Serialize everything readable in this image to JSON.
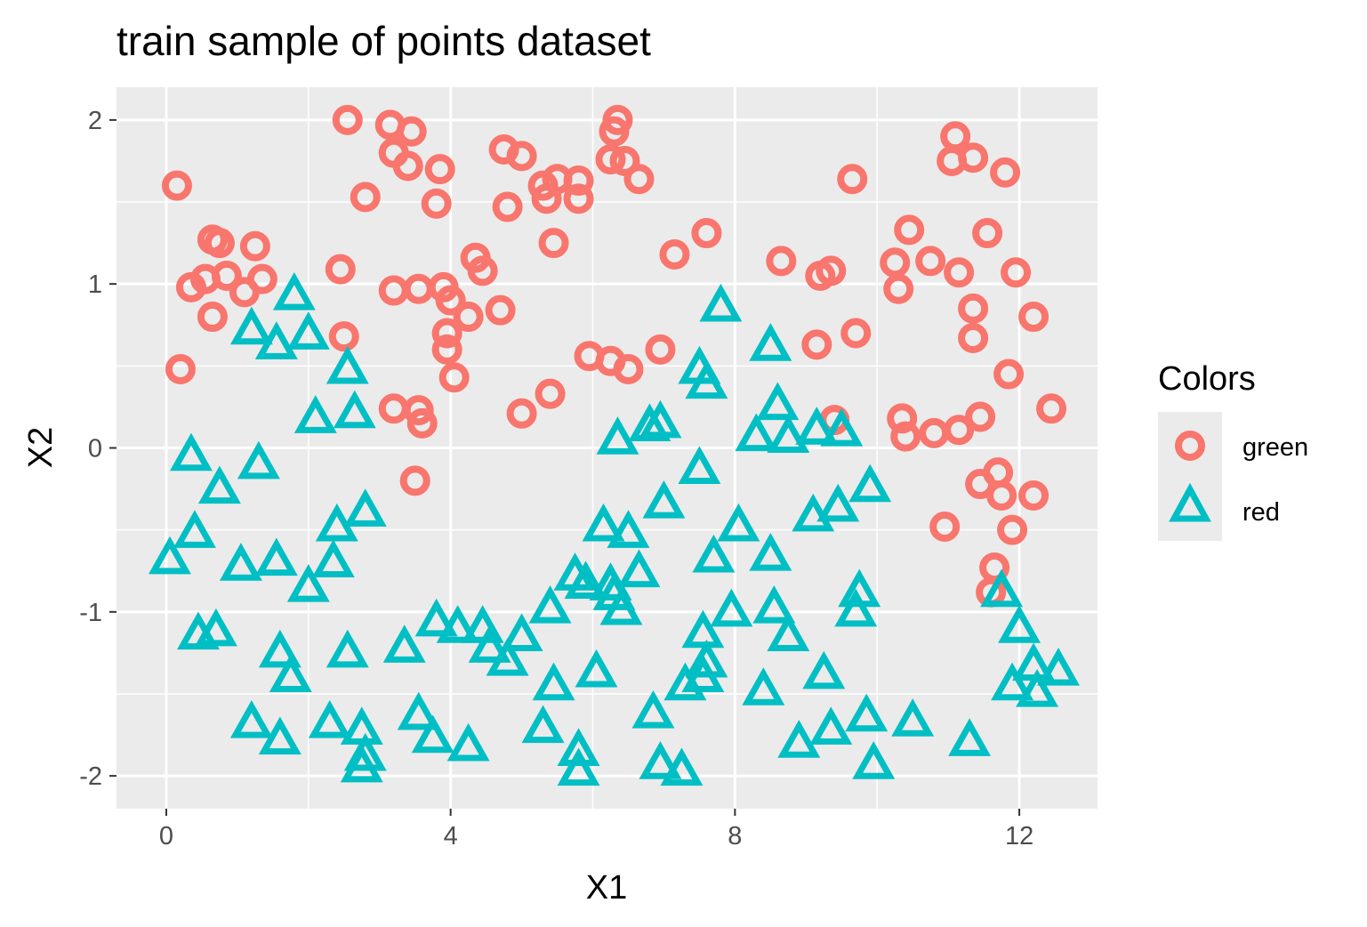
{
  "chart_data": {
    "type": "scatter",
    "title": "train sample of points dataset",
    "xlabel": "X1",
    "ylabel": "X2",
    "xlim": [
      -0.7,
      13.1
    ],
    "ylim": [
      -2.2,
      2.2
    ],
    "x_ticks": [
      0,
      4,
      8,
      12
    ],
    "x_tick_labels": [
      "0",
      "4",
      "8",
      "12"
    ],
    "y_ticks": [
      -2,
      -1,
      0,
      1,
      2
    ],
    "y_tick_labels": [
      "-2",
      "-1",
      "0",
      "1",
      "2"
    ],
    "grid": true,
    "legend": {
      "title": "Colors",
      "placement": "right"
    },
    "colors": {
      "green": "#F8766D",
      "red": "#00BFC4",
      "panel": "#EBEBEB",
      "grid": "#FFFFFF"
    },
    "series": [
      {
        "name": "green",
        "shape": "circle",
        "color": "#F8766D",
        "points": [
          [
            0.15,
            1.6
          ],
          [
            0.2,
            0.48
          ],
          [
            0.35,
            0.98
          ],
          [
            0.55,
            1.03
          ],
          [
            0.65,
            1.27
          ],
          [
            0.75,
            1.25
          ],
          [
            0.65,
            0.8
          ],
          [
            0.85,
            1.05
          ],
          [
            1.1,
            0.95
          ],
          [
            1.25,
            1.23
          ],
          [
            1.35,
            1.03
          ],
          [
            2.45,
            1.09
          ],
          [
            2.5,
            0.68
          ],
          [
            2.55,
            2.0
          ],
          [
            2.8,
            1.53
          ],
          [
            3.15,
            1.97
          ],
          [
            3.2,
            1.8
          ],
          [
            3.4,
            1.72
          ],
          [
            3.45,
            1.93
          ],
          [
            3.2,
            0.96
          ],
          [
            3.55,
            0.97
          ],
          [
            3.2,
            0.24
          ],
          [
            3.55,
            0.23
          ],
          [
            3.6,
            0.15
          ],
          [
            3.5,
            -0.2
          ],
          [
            3.8,
            1.49
          ],
          [
            3.85,
            1.7
          ],
          [
            3.9,
            0.98
          ],
          [
            4.0,
            0.9
          ],
          [
            3.95,
            0.7
          ],
          [
            3.95,
            0.6
          ],
          [
            4.05,
            0.43
          ],
          [
            4.25,
            0.8
          ],
          [
            4.35,
            1.16
          ],
          [
            4.45,
            1.08
          ],
          [
            4.7,
            0.84
          ],
          [
            4.75,
            1.82
          ],
          [
            4.8,
            1.47
          ],
          [
            5.0,
            1.78
          ],
          [
            5.0,
            0.21
          ],
          [
            5.3,
            1.6
          ],
          [
            5.35,
            1.52
          ],
          [
            5.4,
            0.33
          ],
          [
            5.5,
            1.64
          ],
          [
            5.45,
            1.25
          ],
          [
            5.8,
            1.63
          ],
          [
            5.8,
            1.52
          ],
          [
            5.95,
            0.56
          ],
          [
            6.25,
            0.53
          ],
          [
            6.25,
            1.76
          ],
          [
            6.3,
            1.93
          ],
          [
            6.35,
            2.0
          ],
          [
            6.45,
            1.75
          ],
          [
            6.5,
            0.48
          ],
          [
            6.65,
            1.64
          ],
          [
            6.95,
            0.6
          ],
          [
            7.15,
            1.18
          ],
          [
            7.6,
            1.31
          ],
          [
            8.65,
            1.14
          ],
          [
            9.15,
            0.63
          ],
          [
            9.2,
            1.05
          ],
          [
            9.35,
            1.08
          ],
          [
            9.4,
            0.17
          ],
          [
            9.65,
            1.64
          ],
          [
            9.7,
            0.7
          ],
          [
            10.25,
            1.13
          ],
          [
            10.3,
            0.97
          ],
          [
            10.35,
            0.18
          ],
          [
            10.4,
            0.07
          ],
          [
            10.45,
            1.33
          ],
          [
            10.75,
            1.14
          ],
          [
            10.8,
            0.09
          ],
          [
            10.95,
            -0.48
          ],
          [
            11.05,
            1.75
          ],
          [
            11.1,
            1.9
          ],
          [
            11.15,
            1.07
          ],
          [
            11.15,
            0.11
          ],
          [
            11.35,
            1.77
          ],
          [
            11.35,
            0.85
          ],
          [
            11.35,
            0.67
          ],
          [
            11.45,
            0.19
          ],
          [
            11.45,
            -0.22
          ],
          [
            11.55,
            1.31
          ],
          [
            11.6,
            -0.88
          ],
          [
            11.65,
            -0.73
          ],
          [
            11.7,
            -0.15
          ],
          [
            11.75,
            -0.29
          ],
          [
            11.8,
            1.68
          ],
          [
            11.85,
            0.45
          ],
          [
            11.9,
            -0.5
          ],
          [
            11.95,
            1.07
          ],
          [
            12.2,
            0.8
          ],
          [
            12.2,
            -0.29
          ],
          [
            12.45,
            0.24
          ]
        ]
      },
      {
        "name": "red",
        "shape": "triangle",
        "color": "#00BFC4",
        "points": [
          [
            0.05,
            -0.68
          ],
          [
            0.35,
            -0.05
          ],
          [
            0.4,
            -0.52
          ],
          [
            0.45,
            -1.14
          ],
          [
            0.7,
            -1.12
          ],
          [
            0.75,
            -0.25
          ],
          [
            1.05,
            -0.72
          ],
          [
            1.2,
            0.72
          ],
          [
            1.2,
            -1.68
          ],
          [
            1.3,
            -0.1
          ],
          [
            1.55,
            0.63
          ],
          [
            1.55,
            -0.69
          ],
          [
            1.6,
            -1.25
          ],
          [
            1.6,
            -1.78
          ],
          [
            1.75,
            -1.4
          ],
          [
            1.8,
            0.93
          ],
          [
            2.0,
            0.69
          ],
          [
            2.0,
            -0.85
          ],
          [
            2.1,
            0.18
          ],
          [
            2.3,
            -1.68
          ],
          [
            2.35,
            -0.7
          ],
          [
            2.4,
            -0.48
          ],
          [
            2.55,
            0.48
          ],
          [
            2.55,
            -1.25
          ],
          [
            2.65,
            0.21
          ],
          [
            2.75,
            -1.72
          ],
          [
            2.75,
            -1.95
          ],
          [
            2.8,
            -1.88
          ],
          [
            2.8,
            -0.39
          ],
          [
            3.35,
            -1.22
          ],
          [
            3.55,
            -1.63
          ],
          [
            3.75,
            -1.77
          ],
          [
            3.8,
            -1.06
          ],
          [
            4.1,
            -1.1
          ],
          [
            4.25,
            -1.82
          ],
          [
            4.45,
            -1.1
          ],
          [
            4.55,
            -1.22
          ],
          [
            4.8,
            -1.3
          ],
          [
            5.0,
            -1.15
          ],
          [
            5.3,
            -1.71
          ],
          [
            5.4,
            -0.98
          ],
          [
            5.45,
            -1.45
          ],
          [
            5.75,
            -0.78
          ],
          [
            5.8,
            -1.85
          ],
          [
            5.8,
            -1.97
          ],
          [
            5.9,
            -0.83
          ],
          [
            6.05,
            -1.37
          ],
          [
            6.15,
            -0.48
          ],
          [
            6.25,
            -0.84
          ],
          [
            6.3,
            -0.9
          ],
          [
            6.35,
            0.05
          ],
          [
            6.4,
            -0.99
          ],
          [
            6.5,
            -0.52
          ],
          [
            6.65,
            -0.76
          ],
          [
            6.8,
            0.13
          ],
          [
            6.85,
            -1.62
          ],
          [
            6.95,
            0.15
          ],
          [
            6.95,
            -1.93
          ],
          [
            7.0,
            -0.34
          ],
          [
            7.25,
            -1.97
          ],
          [
            7.3,
            -1.45
          ],
          [
            7.5,
            0.48
          ],
          [
            7.5,
            -0.13
          ],
          [
            7.55,
            -1.4
          ],
          [
            7.55,
            -1.13
          ],
          [
            7.6,
            0.39
          ],
          [
            7.6,
            -1.31
          ],
          [
            7.7,
            -0.67
          ],
          [
            7.8,
            0.86
          ],
          [
            7.95,
            -1.0
          ],
          [
            8.05,
            -0.48
          ],
          [
            8.3,
            0.07
          ],
          [
            8.4,
            -1.48
          ],
          [
            8.5,
            0.62
          ],
          [
            8.5,
            -0.66
          ],
          [
            8.55,
            -0.98
          ],
          [
            8.6,
            0.26
          ],
          [
            8.75,
            0.06
          ],
          [
            8.75,
            -1.15
          ],
          [
            8.9,
            -1.8
          ],
          [
            9.1,
            -0.42
          ],
          [
            9.15,
            0.11
          ],
          [
            9.25,
            -1.38
          ],
          [
            9.35,
            -1.72
          ],
          [
            9.45,
            -0.36
          ],
          [
            9.5,
            0.1
          ],
          [
            9.7,
            -1.0
          ],
          [
            9.75,
            -0.88
          ],
          [
            9.85,
            -1.64
          ],
          [
            9.9,
            -0.24
          ],
          [
            9.95,
            -1.93
          ],
          [
            10.5,
            -1.67
          ],
          [
            11.3,
            -1.79
          ],
          [
            11.75,
            -0.88
          ],
          [
            11.9,
            -1.45
          ],
          [
            12.0,
            -1.1
          ],
          [
            12.2,
            -1.33
          ],
          [
            12.25,
            -1.49
          ],
          [
            12.55,
            -1.36
          ]
        ]
      }
    ]
  }
}
